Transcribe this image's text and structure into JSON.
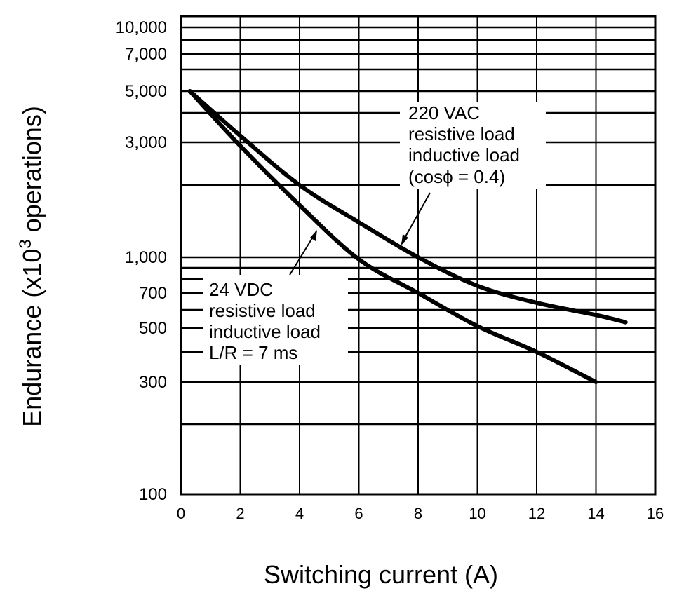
{
  "chart_data": {
    "type": "line",
    "title": "",
    "xlabel": "Switching current (A)",
    "ylabel_main": "Endurance (x10",
    "ylabel_sup": "3",
    "ylabel_end": " operations)",
    "x_scale": "linear",
    "y_scale": "log",
    "xlim": [
      0,
      16
    ],
    "ylim": [
      100,
      10000
    ],
    "grid": true,
    "x_ticks": [
      "0",
      "2",
      "4",
      "6",
      "8",
      "10",
      "12",
      "14",
      "16"
    ],
    "y_ticks": [
      "10,000",
      "7,000",
      "5,000",
      "3,000",
      "1,000",
      "700",
      "500",
      "300",
      "100"
    ],
    "series": [
      {
        "name": "220 VAC resistive load inductive load (cosϕ = 0.4)",
        "x": [
          0.3,
          2,
          4,
          6,
          8,
          10,
          12,
          14,
          15
        ],
        "y": [
          5000,
          3200,
          2000,
          1400,
          1000,
          750,
          640,
          570,
          530
        ]
      },
      {
        "name": "24 VDC resistive load inductive load L/R = 7 ms",
        "x": [
          0.3,
          2,
          4,
          6,
          8,
          10,
          12,
          14
        ],
        "y": [
          5000,
          2900,
          1650,
          980,
          700,
          510,
          400,
          300
        ]
      }
    ],
    "annotations": {
      "ac": [
        "220 VAC",
        "resistive load",
        "inductive load",
        "(cosϕ = 0.4)"
      ],
      "dc": [
        "24 VDC",
        "resistive load",
        "inductive load",
        "L/R = 7 ms"
      ]
    },
    "line_color": "#000000"
  }
}
